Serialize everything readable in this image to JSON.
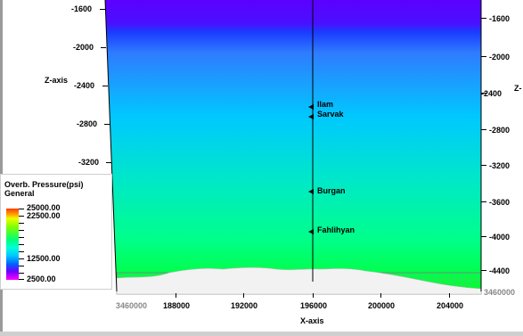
{
  "colors": {
    "top": "#5b00ff",
    "upper": "#2f3cff",
    "mid": "#00c8ff",
    "lower": "#00ff8a",
    "bottom": "#00ff2a",
    "basement": "#efefef",
    "grid": "#8a8a8a"
  },
  "axes": {
    "z_left_title": "Z-axis",
    "z_right_title": "Z-",
    "x_title": "X-axis",
    "z_left_ticks": [
      "-1600",
      "-2000",
      "-2400",
      "-2800",
      "-3200"
    ],
    "z_right_ticks": [
      "-1600",
      "-2000",
      "-2400",
      "-2800",
      "-3200",
      "-3600",
      "-4000",
      "-4400"
    ],
    "x_ticks": [
      "3460000",
      "188000",
      "192000",
      "196000",
      "200000",
      "204000"
    ],
    "right_extra_tick": "3460000"
  },
  "markers": [
    {
      "name": "Ilam"
    },
    {
      "name": "Sarvak"
    },
    {
      "name": "Burgan"
    },
    {
      "name": "Fahlihyan"
    }
  ],
  "legend": {
    "title_line1": "Overb. Pressure(psi)",
    "title_line2": "General",
    "values": [
      "25000.00",
      "22500.00",
      "12500.00",
      "2500.00"
    ]
  }
}
